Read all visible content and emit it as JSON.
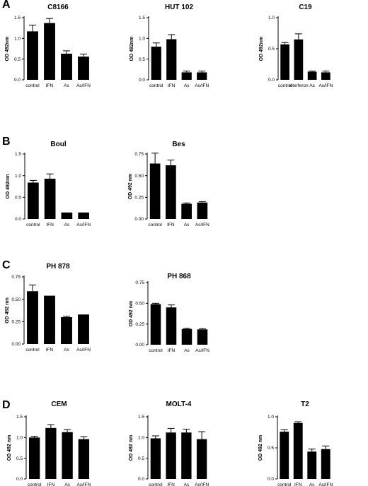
{
  "panels": [
    {
      "letter": "A"
    },
    {
      "letter": "B"
    },
    {
      "letter": "C"
    },
    {
      "letter": "D"
    }
  ],
  "chart_data": [
    {
      "type": "bar",
      "panel": "A",
      "title": "C8166",
      "ylabel": "OD 492nm",
      "categories": [
        "control",
        "IFN",
        "As",
        "As/IFN"
      ],
      "values": [
        1.17,
        1.37,
        0.63,
        0.56
      ],
      "errors": [
        0.15,
        0.11,
        0.07,
        0.06
      ],
      "ylim": [
        0,
        1.5
      ],
      "yticks": [
        "0.0",
        "0.5",
        "1.0",
        "1.5"
      ],
      "ytick_values": [
        0,
        0.5,
        1.0,
        1.5
      ]
    },
    {
      "type": "bar",
      "panel": "A",
      "title": "HUT 102",
      "ylabel": "OD 492nm",
      "categories": [
        "control",
        "IFN",
        "As",
        "As/IFN"
      ],
      "values": [
        0.8,
        0.98,
        0.18,
        0.18
      ],
      "errors": [
        0.09,
        0.11,
        0.03,
        0.03
      ],
      "ylim": [
        0,
        1.5
      ],
      "yticks": [
        "0.0",
        "0.5",
        "1.0",
        "1.5"
      ],
      "ytick_values": [
        0,
        0.5,
        1.0,
        1.5
      ]
    },
    {
      "type": "bar",
      "panel": "A",
      "title": "C19",
      "ylabel": "OD 492nm",
      "categories": [
        "control",
        "interferon",
        "As",
        "As/IFN"
      ],
      "values": [
        0.57,
        0.65,
        0.13,
        0.12
      ],
      "errors": [
        0.03,
        0.09,
        0.01,
        0.02
      ],
      "ylim": [
        0,
        1.0
      ],
      "yticks": [
        "0.0",
        "0.5",
        "1.0"
      ],
      "ytick_values": [
        0,
        0.5,
        1.0
      ]
    },
    {
      "type": "bar",
      "panel": "B",
      "title": "Boul",
      "ylabel": "OD 492nm",
      "categories": [
        "control",
        "IFN",
        "As",
        "As/IFN"
      ],
      "values": [
        0.84,
        0.93,
        0.15,
        0.15
      ],
      "errors": [
        0.05,
        0.11,
        0.0,
        0.0
      ],
      "ylim": [
        0,
        1.5
      ],
      "yticks": [
        "0.0",
        "0.5",
        "1.0",
        "1.5"
      ],
      "ytick_values": [
        0,
        0.5,
        1.0,
        1.5
      ]
    },
    {
      "type": "bar",
      "panel": "B",
      "title": "Bes",
      "ylabel": "OD 492 nm",
      "categories": [
        "control",
        "IFN",
        "As",
        "As/IFN"
      ],
      "values": [
        0.64,
        0.62,
        0.175,
        0.19
      ],
      "errors": [
        0.12,
        0.06,
        0.01,
        0.01
      ],
      "ylim": [
        0,
        0.75
      ],
      "yticks": [
        "0.00",
        "0.25",
        "0.50",
        "0.75"
      ],
      "ytick_values": [
        0,
        0.25,
        0.5,
        0.75
      ]
    },
    {
      "type": "bar",
      "panel": "C",
      "title": "PH 878",
      "ylabel": "OD 492 nm",
      "categories": [
        "control",
        "IFN",
        "As",
        "As/IFN"
      ],
      "values": [
        0.59,
        0.54,
        0.3,
        0.33
      ],
      "errors": [
        0.07,
        0.0,
        0.01,
        0.0
      ],
      "ylim": [
        0,
        0.75
      ],
      "yticks": [
        "0.00",
        "0.25",
        "0.50",
        "0.75"
      ],
      "ytick_values": [
        0,
        0.25,
        0.5,
        0.75
      ]
    },
    {
      "type": "bar",
      "panel": "C",
      "title": "PH 868",
      "ylabel": "OD 492 nm",
      "categories": [
        "control",
        "IFN",
        "As",
        "As/IFN"
      ],
      "values": [
        0.49,
        0.45,
        0.19,
        0.185
      ],
      "errors": [
        0.01,
        0.03,
        0.01,
        0.01
      ],
      "ylim": [
        0,
        0.75
      ],
      "yticks": [
        "0.00",
        "0.25",
        "0.50",
        "0.75"
      ],
      "ytick_values": [
        0,
        0.25,
        0.5,
        0.75
      ]
    },
    {
      "type": "bar",
      "panel": "D",
      "title": "CEM",
      "ylabel": "OD 492 nm",
      "categories": [
        "control",
        "IFN",
        "As",
        "As/IFN"
      ],
      "values": [
        1.0,
        1.23,
        1.13,
        0.96
      ],
      "errors": [
        0.03,
        0.08,
        0.06,
        0.06
      ],
      "ylim": [
        0,
        1.5
      ],
      "yticks": [
        "0.0",
        "0.5",
        "1.0",
        "1.5"
      ],
      "ytick_values": [
        0,
        0.5,
        1.0,
        1.5
      ]
    },
    {
      "type": "bar",
      "panel": "D",
      "title": "MOLT-4",
      "ylabel": "OD 492 nm",
      "categories": [
        "control",
        "IFN",
        "As",
        "As/IFN"
      ],
      "values": [
        0.98,
        1.12,
        1.12,
        0.96
      ],
      "errors": [
        0.06,
        0.1,
        0.08,
        0.18
      ],
      "ylim": [
        0,
        1.5
      ],
      "yticks": [
        "0.0",
        "0.5",
        "1.0",
        "1.5"
      ],
      "ytick_values": [
        0,
        0.5,
        1.0,
        1.5
      ]
    },
    {
      "type": "bar",
      "panel": "D",
      "title": "T2",
      "ylabel": "OD 492 nm",
      "categories": [
        "control",
        "IFN",
        "As",
        "As/IFN"
      ],
      "values": [
        0.76,
        0.9,
        0.44,
        0.48
      ],
      "errors": [
        0.03,
        0.02,
        0.04,
        0.05
      ],
      "ylim": [
        0,
        1.0
      ],
      "yticks": [
        "0.0",
        "0.5",
        "1.0"
      ],
      "ytick_values": [
        0,
        0.5,
        1.0
      ]
    }
  ]
}
